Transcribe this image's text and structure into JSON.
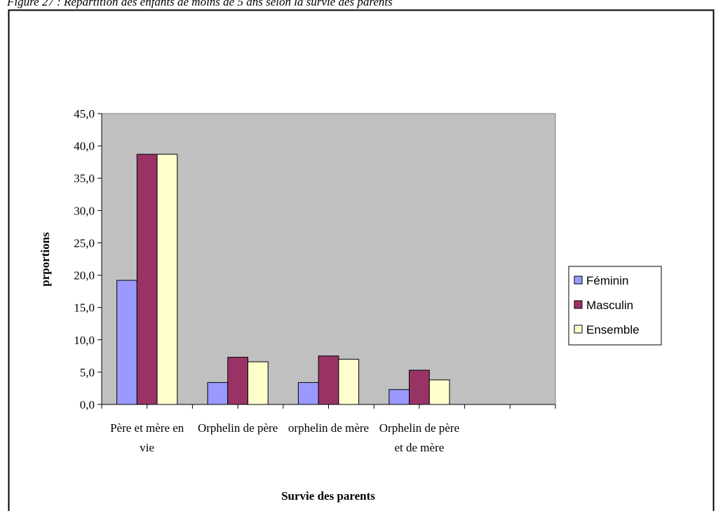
{
  "chart_data": {
    "type": "bar",
    "title": "Figure 27 : Répartition des enfants de moins de 5 ans selon la survie des parents",
    "x_label": "Survie des parents",
    "y_label": "prportions",
    "categories": [
      "Père et mère en vie",
      "Orphelin de père",
      "orphelin de mère",
      "Orphelin de père et de mère",
      null
    ],
    "series": [
      {
        "name": "Féminin",
        "color": "#9999ff",
        "values": [
          19.2,
          3.4,
          3.4,
          2.3,
          null
        ]
      },
      {
        "name": "Masculin",
        "color": "#993366",
        "values": [
          38.7,
          7.3,
          7.5,
          5.3,
          null
        ]
      },
      {
        "name": "Ensemble",
        "color": "#ffffcc",
        "values": [
          38.7,
          6.6,
          7.0,
          3.8,
          null
        ]
      }
    ],
    "ylim": [
      0,
      45
    ],
    "yticks": [
      {
        "value": 0,
        "label": "0,0"
      },
      {
        "value": 5,
        "label": "5,0"
      },
      {
        "value": 10,
        "label": "10,0"
      },
      {
        "value": 15,
        "label": "15,0"
      },
      {
        "value": 20,
        "label": "20,0"
      },
      {
        "value": 25,
        "label": "25,0"
      },
      {
        "value": 30,
        "label": "30,0"
      },
      {
        "value": 35,
        "label": "35,0"
      },
      {
        "value": 40,
        "label": "40,0"
      },
      {
        "value": 45,
        "label": "45,0"
      }
    ],
    "plot_background": "#c0c0c0",
    "legend": "right"
  }
}
